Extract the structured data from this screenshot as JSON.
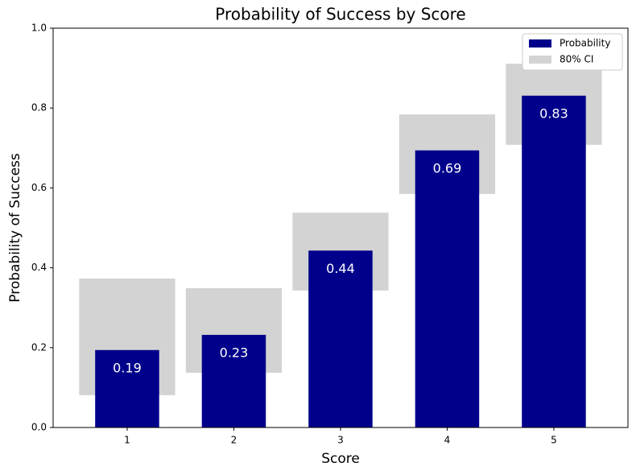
{
  "chart_data": {
    "type": "bar",
    "title": "Probability of Success by Score",
    "x_label": "Score",
    "y_label": "Probability of Success",
    "categories": [
      "1",
      "2",
      "3",
      "4",
      "5"
    ],
    "series": [
      {
        "name": "Probability",
        "color": "#00008b",
        "values": [
          0.194,
          0.232,
          0.443,
          0.694,
          0.831
        ],
        "value_labels": [
          "0.19",
          "0.23",
          "0.44",
          "0.69",
          "0.83"
        ]
      },
      {
        "name": "80% CI",
        "color": "#d3d3d3",
        "ci_lower": [
          0.081,
          0.137,
          0.343,
          0.585,
          0.708
        ],
        "ci_upper": [
          0.373,
          0.349,
          0.538,
          0.784,
          0.911
        ]
      }
    ],
    "ylim": [
      0,
      1
    ],
    "yticks": [
      {
        "value": 0,
        "label": "0.0"
      },
      0.2,
      0.4,
      0.6,
      0.8,
      {
        "value": 1,
        "label": "1.0"
      }
    ],
    "legend": "upper right"
  }
}
